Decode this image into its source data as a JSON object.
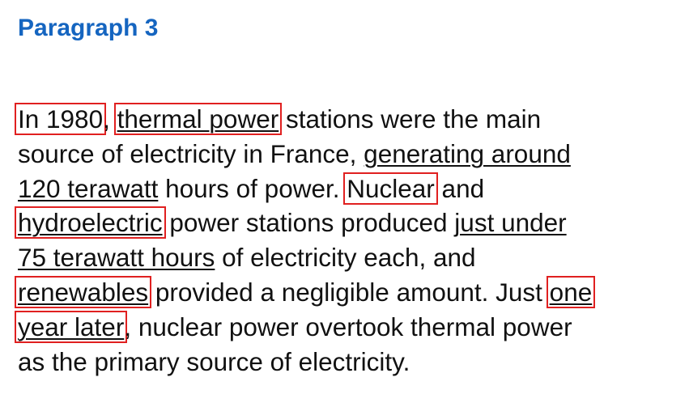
{
  "heading": "Paragraph 3",
  "paragraph": {
    "l1_a": "In 1980",
    "l1_b": ", ",
    "l1_c": "thermal power",
    "l1_d": " stations were the main",
    "l2_a": "source of electricity in France, ",
    "l2_b": "generating around",
    "l3_a": "120 terawatt",
    "l3_b": " hours of power. ",
    "l3_c": "Nuclear",
    "l3_d": " and",
    "l4_a": "hydroelectric",
    "l4_b": " power stations produced ",
    "l4_c": "just under",
    "l5_a": "75 terawatt hours",
    "l5_b": " of electricity each, and",
    "l6_a": "renewables",
    "l6_b": " provided a negligible amount. Just ",
    "l6_c": "one",
    "l7_a": "year later",
    "l7_b": ", nuclear power overtook thermal power",
    "l8_a": "as the primary source of electricity."
  },
  "highlight_color": "#e02020",
  "heading_color": "#1565c0"
}
